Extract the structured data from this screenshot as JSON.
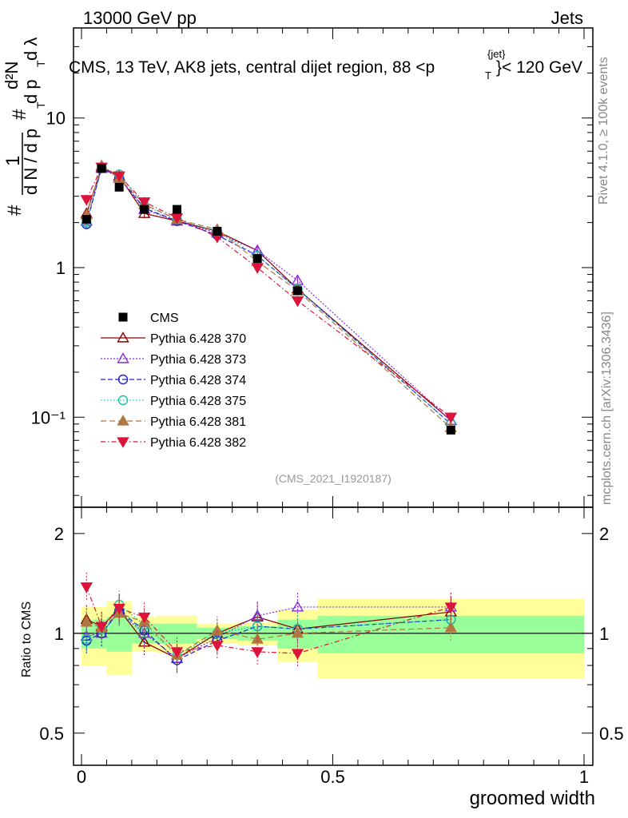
{
  "header": {
    "left": "13000 GeV pp",
    "right": "Jets",
    "title_prefix": "CMS, 13 TeV, AK8 jets, central dijet region, 88 <p",
    "title_sup": "{jet}",
    "title_sub": "T",
    "title_suffix": "}< 120 GeV"
  },
  "side": {
    "rivet": "Rivet 4.1.0, ≥ 100k events",
    "mcplots": "mcplots.cern.ch [arXiv:1306.3436]"
  },
  "analysis_id": "(CMS_2021_I1920187)",
  "y_axis_top": {
    "hash1": "#",
    "one": "1",
    "dn": "d N / d p",
    "t1": "T",
    "hash2": "#",
    "d2n": "d²N",
    "dp": "d p",
    "t2": "T",
    "dl": "d λ"
  },
  "y_axis_bottom": "Ratio to CMS",
  "x_axis_title": "groomed width",
  "chart_data": {
    "type": "scatter",
    "xlabel": "groomed width",
    "x_range": [
      0,
      1
    ],
    "x_ticks": [
      "0",
      "0.5",
      "1"
    ],
    "top_panel": {
      "yscale": "log",
      "ylim": [
        0.025,
        40
      ],
      "y_ticks": [
        "10⁻¹",
        "1",
        "10"
      ],
      "data": {
        "name": "CMS",
        "x": [
          0.01,
          0.04,
          0.075,
          0.125,
          0.19,
          0.27,
          0.35,
          0.43,
          0.735
        ],
        "y": [
          2.1,
          4.6,
          3.45,
          2.45,
          2.45,
          1.75,
          1.15,
          0.7,
          0.082
        ]
      },
      "series": [
        {
          "name": "Pythia 6.428 370",
          "color": "#8b0000",
          "marker": "triangle-open",
          "y": [
            2.3,
            4.7,
            4.1,
            2.3,
            2.05,
            1.75,
            1.3,
            0.72,
            0.095
          ]
        },
        {
          "name": "Pythia 6.428 373",
          "color": "#8a2be2",
          "marker": "triangle-open",
          "y": [
            2.05,
            4.6,
            4.0,
            2.45,
            2.05,
            1.7,
            1.3,
            0.82,
            0.095
          ]
        },
        {
          "name": "Pythia 6.428 374",
          "color": "#2020d0",
          "marker": "circle-open",
          "y": [
            1.95,
            4.65,
            4.0,
            2.5,
            2.05,
            1.65,
            1.2,
            0.72,
            0.09
          ]
        },
        {
          "name": "Pythia 6.428 375",
          "color": "#20c0a8",
          "marker": "circle-open",
          "y": [
            2.0,
            4.7,
            4.2,
            2.6,
            2.1,
            1.75,
            1.2,
            0.72,
            0.09
          ]
        },
        {
          "name": "Pythia 6.428 381",
          "color": "#b07840",
          "marker": "triangle-filled",
          "y": [
            2.25,
            4.8,
            3.95,
            2.65,
            2.1,
            1.8,
            1.1,
            0.7,
            0.085
          ]
        },
        {
          "name": "Pythia 6.428 382",
          "color": "#dc143c",
          "marker": "triangle-down-filled",
          "y": [
            2.85,
            4.7,
            4.1,
            2.75,
            2.15,
            1.6,
            1.0,
            0.6,
            0.1
          ]
        }
      ]
    },
    "ratio_panel": {
      "yscale": "log",
      "ylim": [
        0.4,
        2.4
      ],
      "y_ticks": [
        "0.5",
        "1",
        "2"
      ],
      "bands": {
        "edges": [
          0,
          0.02,
          0.05,
          0.1,
          0.15,
          0.23,
          0.31,
          0.39,
          0.47,
          1.0
        ],
        "green": [
          0.1,
          0.1,
          0.12,
          0.07,
          0.07,
          0.04,
          0.05,
          0.1,
          0.13
        ],
        "yellow": [
          0.2,
          0.2,
          0.25,
          0.12,
          0.13,
          0.07,
          0.08,
          0.18,
          0.27
        ]
      },
      "series": [
        {
          "name": "Pythia 6.428 370",
          "y": [
            1.1,
            1.05,
            1.18,
            0.94,
            0.84,
            1.0,
            1.12,
            1.03,
            1.16
          ]
        },
        {
          "name": "Pythia 6.428 373",
          "y": [
            0.98,
            1.0,
            1.16,
            1.0,
            0.84,
            0.97,
            1.13,
            1.2,
            1.2
          ]
        },
        {
          "name": "Pythia 6.428 374",
          "y": [
            0.95,
            1.0,
            1.17,
            1.02,
            0.83,
            0.95,
            1.05,
            1.03,
            1.1
          ]
        },
        {
          "name": "Pythia 6.428 375",
          "y": [
            0.96,
            1.03,
            1.22,
            1.06,
            0.86,
            1.0,
            1.05,
            1.03,
            1.1
          ]
        },
        {
          "name": "Pythia 6.428 381",
          "y": [
            1.08,
            1.04,
            1.15,
            1.08,
            0.86,
            1.02,
            0.96,
            1.0,
            1.04
          ]
        },
        {
          "name": "Pythia 6.428 382",
          "y": [
            1.38,
            1.05,
            1.19,
            1.12,
            0.88,
            0.92,
            0.88,
            0.87,
            1.2
          ]
        }
      ]
    }
  }
}
